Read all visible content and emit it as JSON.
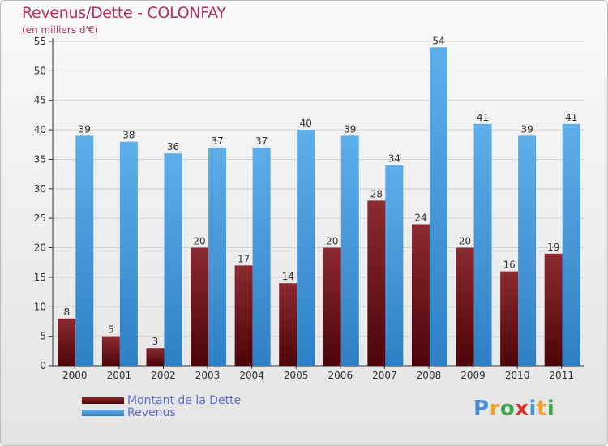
{
  "title": "Revenus/Dette - COLONFAY",
  "subtitle": "(en milliers d'€)",
  "chart_data": {
    "type": "bar",
    "title": "Revenus/Dette - COLONFAY",
    "ylabel": "(en milliers d'€)",
    "xlabel": "",
    "categories": [
      "2000",
      "2001",
      "2002",
      "2003",
      "2004",
      "2005",
      "2006",
      "2007",
      "2008",
      "2009",
      "2010",
      "2011"
    ],
    "series": [
      {
        "name": "Montant de la Dette",
        "color": "#7a1a1f",
        "values": [
          8,
          5,
          3,
          20,
          17,
          14,
          20,
          28,
          24,
          20,
          16,
          19
        ]
      },
      {
        "name": "Revenus",
        "color": "#4f9fe0",
        "values": [
          39,
          38,
          36,
          37,
          37,
          40,
          39,
          34,
          54,
          41,
          39,
          41
        ]
      }
    ],
    "ylim": [
      0,
      55
    ],
    "yticks": [
      0,
      5,
      10,
      15,
      20,
      25,
      30,
      35,
      40,
      45,
      50,
      55
    ],
    "grid": true,
    "legend": "bottom-left"
  },
  "legend": {
    "dette_label": "Montant de la Dette",
    "revenus_label": "Revenus"
  },
  "logo": {
    "letters": [
      "P",
      "r",
      "o",
      "x",
      "i",
      "t",
      "i"
    ],
    "colors": [
      "#4a90d9",
      "#f0a030",
      "#3aa84a",
      "#d9342b",
      "#4a90d9",
      "#f0a030",
      "#3aa84a"
    ]
  }
}
